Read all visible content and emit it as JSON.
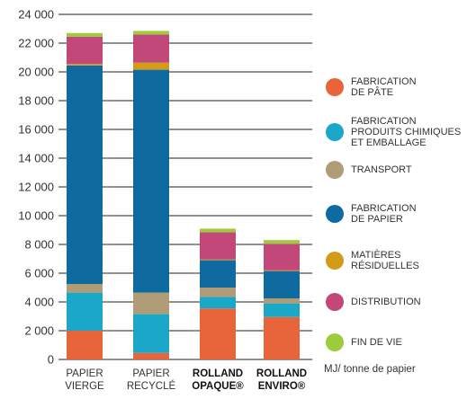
{
  "chart_data": {
    "type": "bar",
    "stacked": true,
    "ylim": [
      0,
      24000
    ],
    "yticks": [
      0,
      2000,
      4000,
      6000,
      8000,
      10000,
      12000,
      14000,
      16000,
      18000,
      20000,
      22000,
      24000
    ],
    "ytick_labels": [
      "0",
      "2 000",
      "4 000",
      "6 000",
      "8 000",
      "10 000",
      "12 000",
      "14 000",
      "16 000",
      "18 000",
      "20 000",
      "22 000",
      "24 000"
    ],
    "categories": [
      {
        "line1": "PAPIER",
        "line2": "VIERGE",
        "bold": false
      },
      {
        "line1": "PAPIER",
        "line2": "RECYCLÉ",
        "bold": false
      },
      {
        "line1": "ROLLAND",
        "line2": "OPAQUE®",
        "bold": true
      },
      {
        "line1": "ROLLAND",
        "line2": "ENVIRO®",
        "bold": true
      }
    ],
    "series": [
      {
        "name": "FABRICATION\nDE PÂTE",
        "color": "#e8643a",
        "values": [
          2000,
          450,
          3550,
          2950
        ]
      },
      {
        "name": "FABRICATION\nPRODUITS CHIMIQUES\nET EMBALLAGE",
        "color": "#1aa7c8",
        "values": [
          2650,
          2700,
          800,
          950
        ]
      },
      {
        "name": "TRANSPORT",
        "color": "#b09d78",
        "values": [
          600,
          1500,
          650,
          350
        ]
      },
      {
        "name": "FABRICATION\nDE PAPIER",
        "color": "#0f6aa0",
        "values": [
          15200,
          15500,
          1900,
          1900
        ]
      },
      {
        "name": "MATIÈRES\nRÉSIDUELLES",
        "color": "#d49a1a",
        "values": [
          100,
          500,
          50,
          50
        ]
      },
      {
        "name": "DISTRIBUTION",
        "color": "#c2487a",
        "values": [
          1900,
          1950,
          1900,
          1850
        ]
      },
      {
        "name": "FIN DE VIE",
        "color": "#9ccb3c",
        "values": [
          250,
          250,
          250,
          250
        ]
      }
    ],
    "unit_label": "MJ/ tonne de papier",
    "grid": true,
    "legend_position": "right"
  }
}
